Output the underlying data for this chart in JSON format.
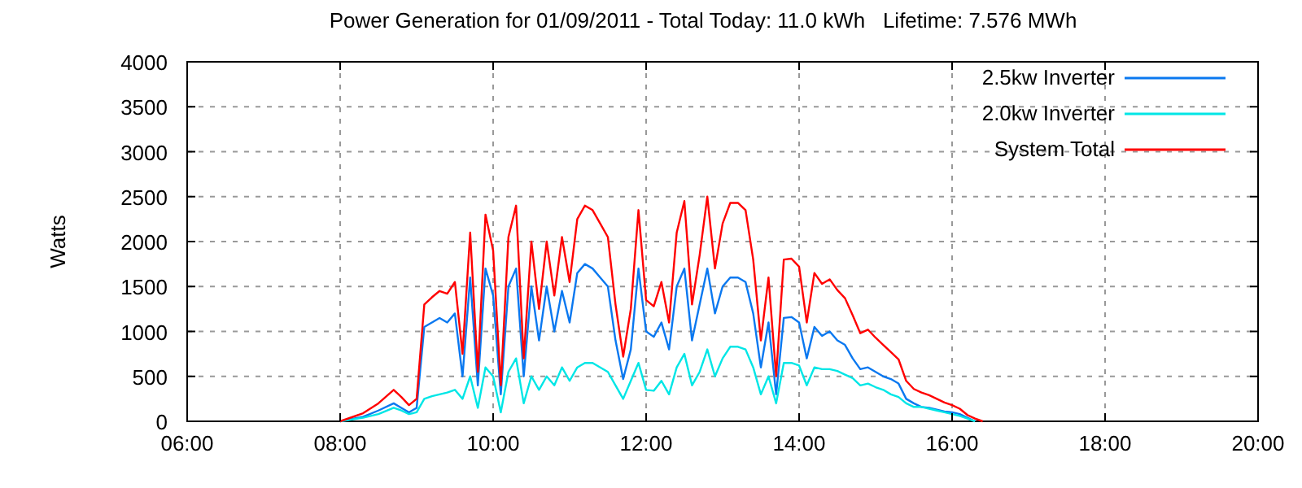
{
  "chart_data": {
    "type": "line",
    "title": "Power Generation for 01/09/2011 - Total Today: 11.0 kWh   Lifetime: 7.576 MWh",
    "ylabel": "Watts",
    "x": [
      8.0,
      8.3,
      8.5,
      8.7,
      8.8,
      8.9,
      9.0,
      9.1,
      9.2,
      9.3,
      9.4,
      9.5,
      9.6,
      9.7,
      9.8,
      9.9,
      10.0,
      10.1,
      10.2,
      10.3,
      10.4,
      10.5,
      10.6,
      10.7,
      10.8,
      10.9,
      11.0,
      11.1,
      11.2,
      11.3,
      11.4,
      11.5,
      11.6,
      11.7,
      11.8,
      11.9,
      12.0,
      12.1,
      12.2,
      12.3,
      12.4,
      12.5,
      12.6,
      12.7,
      12.8,
      12.9,
      13.0,
      13.1,
      13.2,
      13.3,
      13.4,
      13.5,
      13.6,
      13.7,
      13.8,
      13.9,
      14.0,
      14.1,
      14.2,
      14.3,
      14.4,
      14.5,
      14.6,
      14.7,
      14.8,
      14.9,
      15.0,
      15.1,
      15.2,
      15.3,
      15.4,
      15.5,
      15.6,
      15.7,
      15.8,
      15.9,
      16.0,
      16.1,
      16.2,
      16.3,
      16.4
    ],
    "series": [
      {
        "name": "2.5kw Inverter",
        "color": "#0a78f0",
        "values": [
          0,
          50,
          120,
          200,
          150,
          100,
          150,
          1050,
          1100,
          1150,
          1100,
          1200,
          500,
          1600,
          400,
          1700,
          1400,
          300,
          1500,
          1700,
          500,
          1500,
          900,
          1500,
          1000,
          1450,
          1100,
          1650,
          1750,
          1700,
          1600,
          1500,
          900,
          470,
          800,
          1700,
          1000,
          940,
          1100,
          800,
          1500,
          1700,
          900,
          1300,
          1700,
          1200,
          1500,
          1600,
          1600,
          1550,
          1200,
          600,
          1100,
          300,
          1150,
          1160,
          1100,
          700,
          1050,
          950,
          1000,
          900,
          850,
          700,
          580,
          600,
          550,
          500,
          470,
          420,
          250,
          200,
          160,
          150,
          130,
          110,
          100,
          80,
          40,
          0,
          null
        ]
      },
      {
        "name": "2.0kw Inverter",
        "color": "#00e6e6",
        "values": [
          0,
          40,
          80,
          150,
          120,
          80,
          100,
          250,
          280,
          300,
          320,
          350,
          250,
          500,
          150,
          600,
          500,
          100,
          550,
          700,
          200,
          500,
          350,
          500,
          400,
          600,
          450,
          600,
          650,
          650,
          600,
          550,
          400,
          250,
          450,
          650,
          350,
          340,
          450,
          300,
          600,
          750,
          400,
          550,
          800,
          500,
          700,
          830,
          830,
          800,
          600,
          300,
          500,
          200,
          650,
          650,
          620,
          400,
          600,
          580,
          580,
          560,
          520,
          480,
          400,
          420,
          380,
          350,
          300,
          270,
          200,
          160,
          160,
          140,
          120,
          100,
          80,
          60,
          30,
          0,
          null
        ]
      },
      {
        "name": "System Total",
        "color": "#ff0000",
        "values": [
          0,
          90,
          200,
          350,
          270,
          180,
          250,
          1300,
          1380,
          1450,
          1420,
          1550,
          750,
          2100,
          550,
          2300,
          1900,
          400,
          2050,
          2400,
          700,
          2000,
          1250,
          2000,
          1400,
          2050,
          1550,
          2250,
          2400,
          2350,
          2200,
          2050,
          1300,
          720,
          1250,
          2350,
          1350,
          1280,
          1550,
          1100,
          2100,
          2450,
          1300,
          1850,
          2500,
          1700,
          2200,
          2430,
          2430,
          2350,
          1800,
          900,
          1600,
          500,
          1800,
          1810,
          1720,
          1100,
          1650,
          1530,
          1580,
          1460,
          1370,
          1180,
          980,
          1020,
          930,
          850,
          770,
          690,
          450,
          360,
          320,
          290,
          250,
          210,
          180,
          140,
          70,
          30,
          0
        ]
      }
    ],
    "xlim": [
      6,
      20
    ],
    "xticks": [
      {
        "value": 6,
        "label": "06:00"
      },
      {
        "value": 8,
        "label": "08:00"
      },
      {
        "value": 10,
        "label": "10:00"
      },
      {
        "value": 12,
        "label": "12:00"
      },
      {
        "value": 14,
        "label": "14:00"
      },
      {
        "value": 16,
        "label": "16:00"
      },
      {
        "value": 18,
        "label": "18:00"
      },
      {
        "value": 20,
        "label": "20:00"
      }
    ],
    "ylim": [
      0,
      4000
    ],
    "yticks": [
      0,
      500,
      1000,
      1500,
      2000,
      2500,
      3000,
      3500,
      4000
    ],
    "grid": true,
    "legend": "top right",
    "marker": "none",
    "line_style": "solid"
  }
}
